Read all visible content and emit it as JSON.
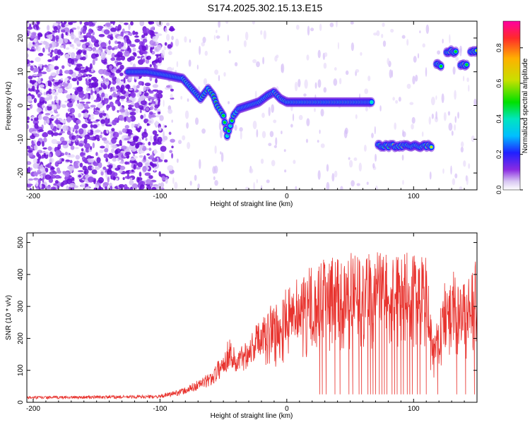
{
  "title": "S174.2025.302.15.13.E15",
  "chart_data": [
    {
      "type": "heatmap",
      "xlabel": "Height of straight line (km)",
      "ylabel": "Frequency (Hz)",
      "xlim": [
        -205,
        150
      ],
      "ylim": [
        -25,
        25
      ],
      "x_ticks": [
        -200,
        -100,
        0,
        100
      ],
      "y_ticks": [
        -20,
        -10,
        0,
        10,
        20
      ],
      "x_tick_labels": [
        "-200",
        "-100",
        "0",
        "100"
      ],
      "y_tick_labels": [
        "-20",
        "-10",
        "0",
        "10",
        "20"
      ],
      "colorbar": {
        "label": "Normalized spectral amplitude",
        "range": [
          0,
          0.95
        ],
        "ticks": [
          "0.0",
          "0.2",
          "0.4",
          "0.6",
          "0.8"
        ],
        "tick_values": [
          0,
          0.2,
          0.4,
          0.6,
          0.8
        ],
        "colormap": "rainbow"
      },
      "ridge": {
        "x": [
          -125,
          -110,
          -95,
          -82,
          -75,
          -68,
          -62,
          -58,
          -55,
          -50,
          -47,
          -42,
          -38,
          -30,
          -22,
          -15,
          -10,
          -5,
          0,
          10,
          20,
          30,
          40,
          50,
          60,
          68
        ],
        "y": [
          10,
          10,
          9,
          8,
          5,
          2,
          5,
          3,
          0,
          -3,
          -9,
          -3,
          -1,
          0,
          1,
          3,
          4,
          2,
          1,
          1,
          1,
          1,
          1,
          1,
          1,
          1
        ]
      },
      "segments": [
        {
          "x": [
            72,
            115
          ],
          "y": -12
        },
        {
          "x": [
            118,
            122
          ],
          "y": 12
        },
        {
          "x": [
            126,
            134
          ],
          "y": 16
        },
        {
          "x": [
            137,
            142
          ],
          "y": 12
        },
        {
          "x": [
            145,
            150
          ],
          "y": 16
        }
      ]
    },
    {
      "type": "line",
      "xlabel": "Height of straight line (km)",
      "ylabel": "SNR (10 * v/v)",
      "xlim": [
        -205,
        150
      ],
      "ylim": [
        0,
        530
      ],
      "x_ticks": [
        -200,
        -100,
        0,
        100
      ],
      "y_ticks": [
        0,
        100,
        200,
        300,
        400,
        500
      ],
      "x_tick_labels": [
        "-200",
        "-100",
        "0",
        "100"
      ],
      "y_tick_labels": [
        "0",
        "100",
        "200",
        "300",
        "400",
        "500"
      ],
      "series": [
        {
          "color": "#e8332e",
          "envelope_x": [
            -205,
            -100,
            -80,
            -60,
            -50,
            -45,
            -40,
            -30,
            -20,
            -10,
            0,
            10,
            20,
            30,
            40,
            50,
            60,
            80,
            100,
            110,
            115,
            120,
            125,
            130,
            140,
            150
          ],
          "envelope_y": [
            18,
            22,
            45,
            90,
            150,
            200,
            150,
            200,
            260,
            300,
            340,
            380,
            410,
            430,
            440,
            450,
            445,
            450,
            455,
            440,
            200,
            260,
            390,
            400,
            360,
            430
          ],
          "dropouts_x": [
            26,
            28,
            31,
            38,
            42,
            49,
            52,
            57,
            59,
            64,
            66,
            68,
            70,
            73,
            75,
            77,
            79,
            83,
            85,
            87,
            90,
            92,
            95,
            97,
            99,
            103,
            105,
            110,
            119,
            134,
            141,
            148
          ],
          "dropout_min": 25
        }
      ]
    }
  ]
}
